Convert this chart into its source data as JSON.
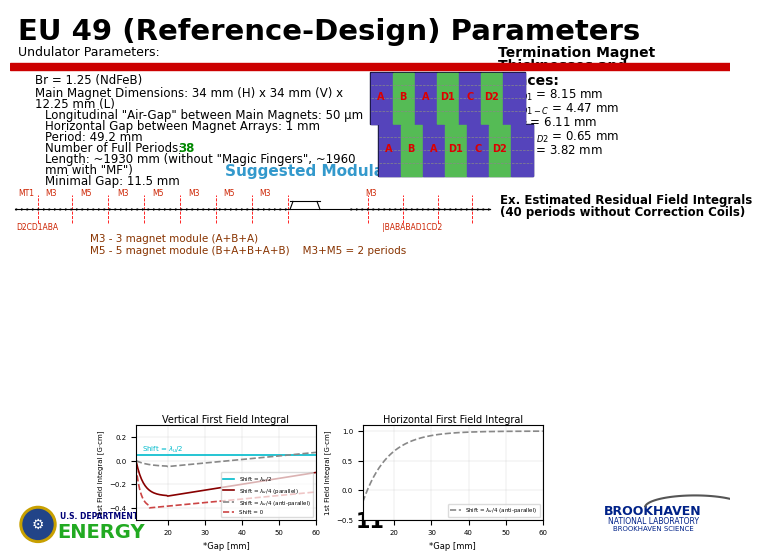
{
  "title": "EU 49 (Reference-Design) Parameters",
  "subtitle_left": "Undulator Parameters:",
  "red_bar_color": "#cc0000",
  "bg_color": "#ffffff",
  "text_color": "#000000",
  "full_periods_number": "38",
  "suggested_text": "Suggested Modular Structure",
  "estimated_text": "Ex. Estimated Residual Field Integrals\n(40 periods without Correction Coils)",
  "m3_label": "M3 - 3 magnet module (A+B+A)",
  "m5_label": "M5 - 5 magnet module (B+A+B+A+B)    M3+M5 = 2 periods",
  "bottom_number": "11",
  "plot_title_v": "Vertical First Field Integral",
  "plot_title_h": "Horizontal First Field Integral",
  "plot_xlabel": "*Gap [mm]",
  "green_color": "#008800",
  "cyan_color": "#00aacc",
  "darkred_color": "#880000",
  "gray_color": "#999999"
}
